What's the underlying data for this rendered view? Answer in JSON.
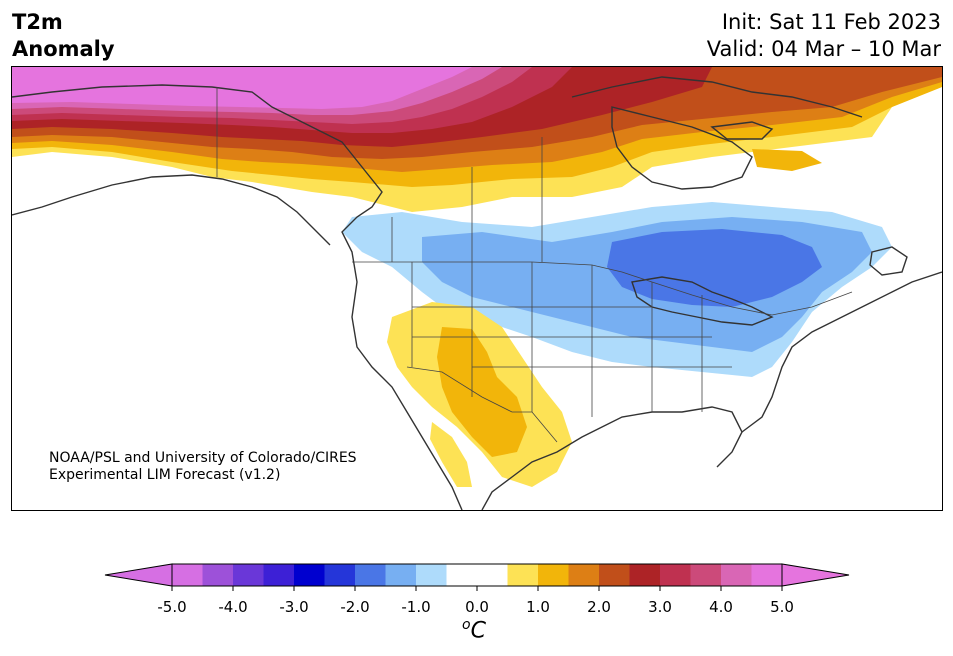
{
  "title": {
    "left_line1": "T2m",
    "left_line2": "Anomaly",
    "init": "Init: Sat 11 Feb 2023",
    "valid": "Valid: 04 Mar – 10 Mar"
  },
  "credit": {
    "line1": "NOAA/PSL and University of Colorado/CIRES",
    "line2": "Experimental LIM Forecast (v1.2)"
  },
  "colorbar": {
    "unit_base": "C",
    "unit_sup": "o",
    "bins": [
      "#d66fe3",
      "#9d51d9",
      "#6a37d8",
      "#3d20d6",
      "#0000cf",
      "#2536d9",
      "#4a76e6",
      "#77aff2",
      "#aedbfb",
      "#ffffff",
      "#ffffff",
      "#fde255",
      "#f2b50a",
      "#dd7f15",
      "#c14f1a",
      "#ad2326",
      "#bf3150",
      "#cc4a7a",
      "#d966b5",
      "#e574de"
    ],
    "min_color": "#d66fe3",
    "max_color": "#e574de",
    "tick_labels": [
      "-5.0",
      "-4.0",
      "-3.0",
      "-2.0",
      "-1.0",
      "0.0",
      "1.0",
      "2.0",
      "3.0",
      "4.0",
      "5.0"
    ]
  },
  "map_colors": {
    "warm5": "#e574de",
    "warm45": "#d966b5",
    "warm4": "#cc4a7a",
    "warm35": "#bf3150",
    "warm3": "#ad2326",
    "warm25": "#c14f1a",
    "warm2": "#dd7f15",
    "warm15": "#f2b50a",
    "warm1": "#fde255",
    "cool05": "#aedbfb",
    "cool1": "#77aff2",
    "cool15": "#4a76e6",
    "coast": "#333333",
    "border": "#444444"
  }
}
